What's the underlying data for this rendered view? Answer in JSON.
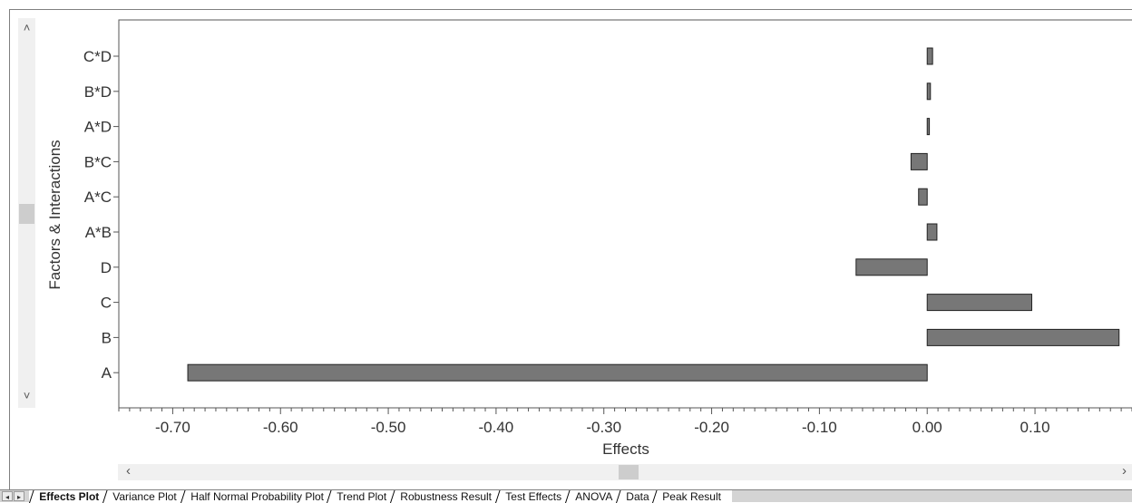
{
  "chart_data": {
    "type": "bar",
    "orientation": "horizontal",
    "categories": [
      "C*D",
      "B*D",
      "A*D",
      "B*C",
      "A*C",
      "A*B",
      "D",
      "C",
      "B",
      "A"
    ],
    "values": [
      0.005,
      0.003,
      0.002,
      -0.015,
      -0.008,
      0.009,
      -0.066,
      0.097,
      0.178,
      -0.686
    ],
    "xlabel": "Effects",
    "ylabel": "Factors & Interactions",
    "xticks": [
      -0.7,
      -0.6,
      -0.5,
      -0.4,
      -0.3,
      -0.2,
      -0.1,
      0.0,
      0.1
    ],
    "xtick_labels": [
      "-0.70",
      "-0.60",
      "-0.50",
      "-0.40",
      "-0.30",
      "-0.20",
      "-0.10",
      "0.00",
      "0.10"
    ],
    "xlim": [
      -0.75,
      0.19
    ],
    "grid": false,
    "bar_color": "#777777",
    "bar_edge_color": "#222222"
  },
  "tabs": [
    {
      "label": "Effects Plot",
      "active": true
    },
    {
      "label": "Variance Plot",
      "active": false
    },
    {
      "label": "Half Normal Probability Plot",
      "active": false
    },
    {
      "label": "Trend Plot",
      "active": false
    },
    {
      "label": "Robustness Result",
      "active": false
    },
    {
      "label": "Test Effects",
      "active": false
    },
    {
      "label": "ANOVA",
      "active": false
    },
    {
      "label": "Data",
      "active": false
    },
    {
      "label": "Peak Result",
      "active": false
    }
  ],
  "icons": {
    "scroll_up": "chevron-up-icon",
    "scroll_down": "chevron-down-icon",
    "scroll_left": "chevron-left-icon",
    "scroll_right": "chevron-right-icon",
    "tab_prev": "triangle-left-icon",
    "tab_next": "triangle-right-icon"
  },
  "glyphs": {
    "up": "˄",
    "down": "˅",
    "left": "‹",
    "right": "›",
    "prev": "◂",
    "next": "▸"
  }
}
